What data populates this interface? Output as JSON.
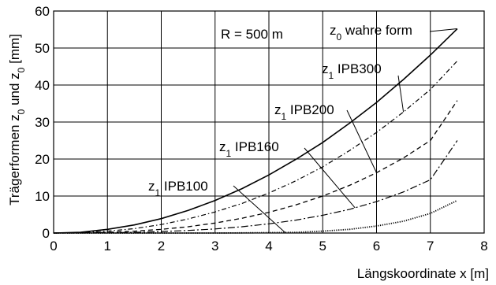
{
  "chart_data": {
    "type": "line",
    "title": "",
    "xlabel": "Längskoordinate x [m]",
    "ylabel": {
      "base": "Trägerformen z",
      "sub1": "0",
      "mid": " und z",
      "sub2": "0",
      "unit": " [mm]"
    },
    "xlim": [
      0,
      8
    ],
    "ylim": [
      0,
      60
    ],
    "xticks": [
      0,
      1,
      2,
      3,
      4,
      5,
      6,
      7,
      8
    ],
    "yticks": [
      0,
      10,
      20,
      30,
      40,
      50,
      60
    ],
    "grid": true,
    "legend": "none",
    "series": [
      {
        "id": "z0",
        "line_style": "solid",
        "x": [
          0,
          0.5,
          1,
          1.5,
          2,
          2.5,
          3,
          3.5,
          4,
          4.5,
          5,
          5.5,
          6,
          6.5,
          7,
          7.5
        ],
        "y": [
          0,
          0.2,
          1.0,
          2.2,
          3.9,
          6.1,
          8.8,
          12.0,
          15.7,
          19.9,
          24.5,
          29.7,
          35.3,
          41.5,
          48.1,
          55.2
        ]
      },
      {
        "id": "ipb300",
        "line_style": "dashdot",
        "x": [
          0,
          0.5,
          1,
          1.5,
          2,
          2.5,
          3,
          3.5,
          4,
          4.5,
          5,
          5.5,
          6,
          6.5,
          7,
          7.5
        ],
        "y": [
          0,
          0.1,
          0.5,
          1.2,
          2.3,
          3.8,
          5.7,
          8.0,
          10.8,
          14.1,
          17.9,
          22.3,
          27.2,
          32.7,
          38.8,
          46.5
        ]
      },
      {
        "id": "ipb200",
        "line_style": "dashed",
        "x": [
          0,
          0.5,
          1,
          1.5,
          2,
          2.5,
          3,
          3.5,
          4,
          4.5,
          5,
          5.5,
          6,
          6.5,
          7,
          7.5
        ],
        "y": [
          0,
          0.05,
          0.2,
          0.5,
          1.0,
          1.7,
          2.7,
          4.0,
          5.6,
          7.6,
          10.0,
          12.9,
          16.3,
          20.3,
          25.0,
          35.8
        ]
      },
      {
        "id": "ipb160",
        "line_style": "dashdot-long",
        "x": [
          0,
          0.5,
          1,
          1.5,
          2,
          2.5,
          3,
          3.5,
          4,
          4.5,
          5,
          5.5,
          6,
          6.5,
          7,
          7.5
        ],
        "y": [
          0,
          0,
          0.1,
          0.2,
          0.4,
          0.7,
          1.1,
          1.7,
          2.5,
          3.5,
          4.8,
          6.4,
          8.5,
          11.1,
          14.4,
          25.0
        ]
      },
      {
        "id": "ipb100",
        "line_style": "dotted",
        "x": [
          0,
          0.5,
          1,
          1.5,
          2,
          2.5,
          3,
          3.5,
          4,
          4.5,
          5,
          5.5,
          6,
          6.5,
          7,
          7.5
        ],
        "y": [
          0,
          0,
          0,
          0,
          0,
          0,
          0,
          0.05,
          0.1,
          0.2,
          0.5,
          1.0,
          1.9,
          3.2,
          5.3,
          8.8
        ]
      }
    ],
    "annotations": [
      {
        "id": "radius",
        "text": "R = 500 m"
      },
      {
        "id": "z0-label",
        "base": "z",
        "sub": "0",
        "rest": " wahre form",
        "target": "z0",
        "target_x": 7.5
      },
      {
        "id": "ipb300-label",
        "base": "z",
        "sub": "1",
        "rest": " IPB300",
        "target": "ipb300",
        "target_x": 6.5
      },
      {
        "id": "ipb200-label",
        "base": "z",
        "sub": "1",
        "rest": " IPB200",
        "target": "ipb200",
        "target_x": 6.0
      },
      {
        "id": "ipb160-label",
        "base": "z",
        "sub": "1",
        "rest": " IPB160",
        "target": "ipb160",
        "target_x": 5.6
      },
      {
        "id": "ipb100-label",
        "base": "z",
        "sub": "1",
        "rest": " IPB100",
        "target": "ipb100",
        "target_x": 4.3
      }
    ]
  }
}
